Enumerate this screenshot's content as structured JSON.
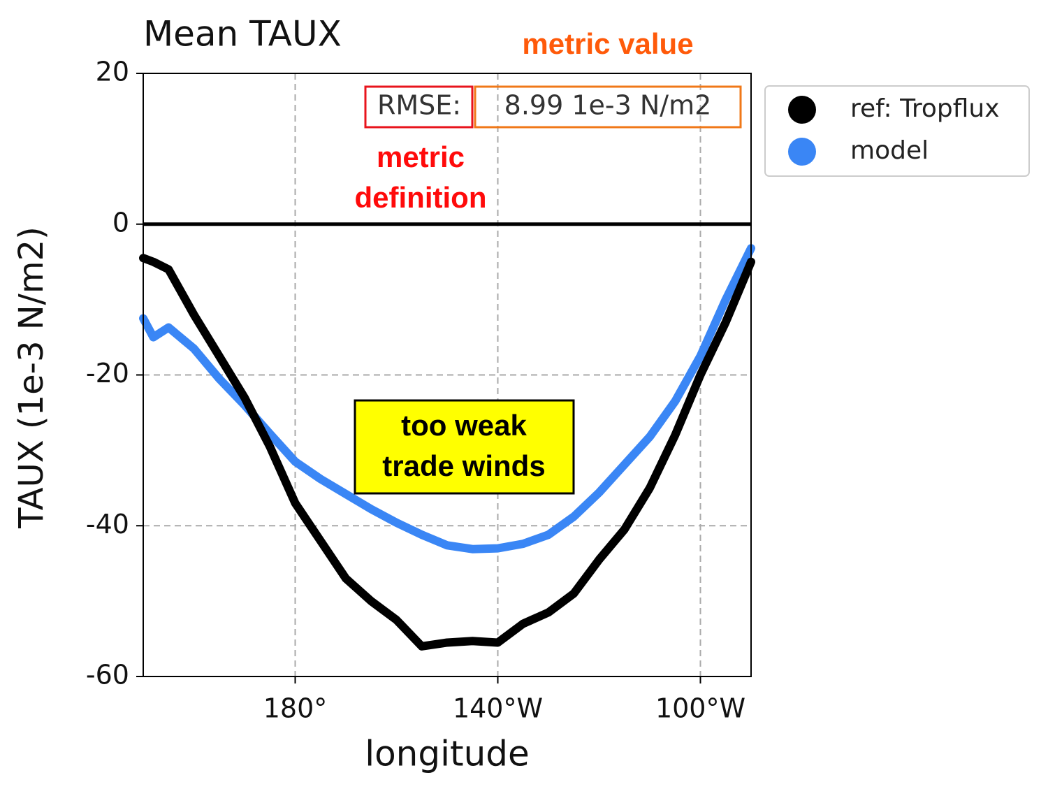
{
  "chart_data": {
    "type": "line",
    "title": "Mean TAUX",
    "x_label": "longitude",
    "y_label": "TAUX (1e-3 N/m2)",
    "x": [
      150,
      152,
      155,
      160,
      165,
      170,
      175,
      180,
      185,
      190,
      195,
      200,
      205,
      210,
      215,
      220,
      225,
      230,
      235,
      240,
      245,
      250,
      255,
      260,
      265,
      270
    ],
    "series": [
      {
        "name": "ref: Tropflux",
        "color": "#000000",
        "values": [
          -4.5,
          -5,
          -6,
          -12,
          -17.5,
          -23,
          -29.5,
          -37,
          -42,
          -47,
          -50,
          -52.5,
          -56,
          -55.5,
          -55.3,
          -55.5,
          -53,
          -51.5,
          -49,
          -44.5,
          -40.5,
          -35,
          -28,
          -20,
          -13,
          -5
        ]
      },
      {
        "name": "model",
        "color": "#3a86f5",
        "values": [
          -12.5,
          -15,
          -13.7,
          -16.5,
          -20.5,
          -24,
          -27.8,
          -31.5,
          -33.8,
          -35.8,
          -37.8,
          -39.6,
          -41.2,
          -42.6,
          -43.1,
          -43,
          -42.4,
          -41.2,
          -38.8,
          -35.6,
          -31.9,
          -28.2,
          -23.5,
          -17.5,
          -10,
          -3.2
        ]
      }
    ],
    "xlim": [
      150,
      270
    ],
    "xticks": [
      {
        "value": 180,
        "label": "180°"
      },
      {
        "value": 220,
        "label": "140°W"
      },
      {
        "value": 260,
        "label": "100°W"
      }
    ],
    "ylim": [
      -60,
      20
    ],
    "yticks": [
      20,
      0,
      -20,
      -40,
      -60
    ],
    "grid": true,
    "legend": "outside-right",
    "annotations": [
      {
        "lines": [
          "RMSE:"
        ],
        "color": "#333333",
        "box": "#e8141c"
      },
      {
        "lines": [
          "8.99 1e-3 N/m2"
        ],
        "color": "#333333",
        "box": "#f07818"
      },
      {
        "lines": [
          "metric value"
        ],
        "color": "#ff5a0a"
      },
      {
        "lines": [
          "metric",
          "definition"
        ],
        "color": "#ff0a0a"
      },
      {
        "lines": [
          "too weak",
          "trade winds"
        ],
        "color": "#000000",
        "box": "#000000",
        "background": "#ffff00"
      }
    ]
  }
}
